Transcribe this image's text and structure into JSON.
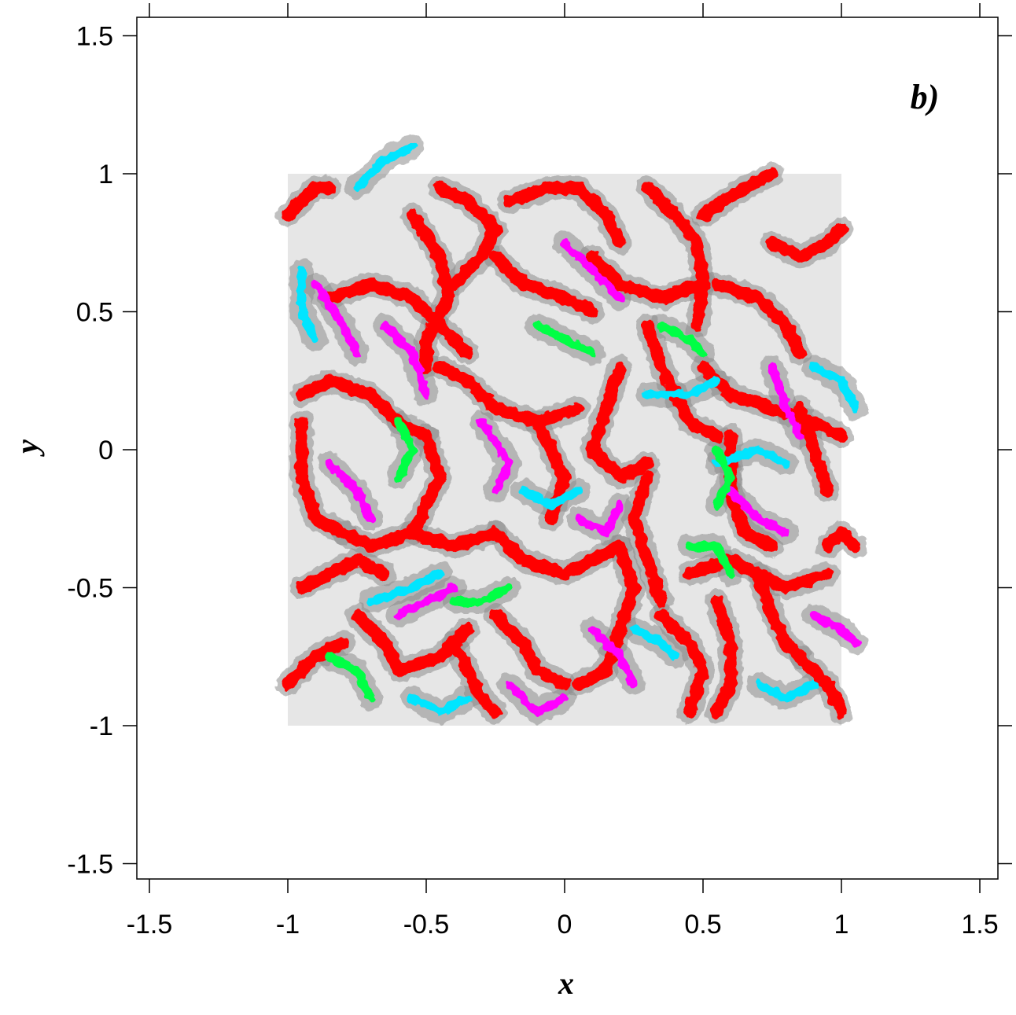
{
  "chart_data": {
    "type": "scatter",
    "panel_label": "b)",
    "xlabel": "x",
    "ylabel": "y",
    "xlim": [
      -1.55,
      1.55
    ],
    "ylim": [
      -1.55,
      1.55
    ],
    "x_ticks": [
      -1.5,
      -1,
      -0.5,
      0,
      0.5,
      1,
      1.5
    ],
    "y_ticks": [
      -1.5,
      -1,
      -0.5,
      0,
      0.5,
      1,
      1.5
    ],
    "x_tick_labels": [
      "-1.5",
      "-1",
      "-0.5",
      "0",
      "0.5",
      "1",
      "1.5"
    ],
    "y_tick_labels": [
      "-1.5",
      "-1",
      "-0.5",
      "0",
      "0.5",
      "1",
      "1.5"
    ],
    "grid": false,
    "domain_region": {
      "x": [
        -1,
        1
      ],
      "y": [
        -1,
        1
      ],
      "color": "#e6e6e6"
    },
    "colors": {
      "grain": "#e8e8e8",
      "grey_particles": "#8c8c8c",
      "red": "#ff0000",
      "magenta": "#ff00ff",
      "cyan": "#00e5ff",
      "green": "#00ff44"
    },
    "series": [
      {
        "color": "#ff0000",
        "curves": [
          [
            [
              -0.85,
              0.55
            ],
            [
              -0.7,
              0.6
            ],
            [
              -0.55,
              0.55
            ],
            [
              -0.45,
              0.45
            ],
            [
              -0.35,
              0.35
            ]
          ],
          [
            [
              -0.55,
              0.85
            ],
            [
              -0.45,
              0.7
            ],
            [
              -0.42,
              0.55
            ],
            [
              -0.5,
              0.4
            ],
            [
              -0.5,
              0.3
            ]
          ],
          [
            [
              -0.4,
              0.6
            ],
            [
              -0.3,
              0.7
            ],
            [
              -0.25,
              0.8
            ],
            [
              -0.35,
              0.9
            ],
            [
              -0.45,
              0.95
            ]
          ],
          [
            [
              -0.25,
              0.7
            ],
            [
              -0.15,
              0.6
            ],
            [
              0.0,
              0.55
            ],
            [
              0.1,
              0.5
            ]
          ],
          [
            [
              -0.2,
              0.9
            ],
            [
              -0.05,
              0.95
            ],
            [
              0.05,
              0.95
            ],
            [
              0.15,
              0.85
            ],
            [
              0.2,
              0.75
            ]
          ],
          [
            [
              0.1,
              0.7
            ],
            [
              0.2,
              0.6
            ],
            [
              0.35,
              0.55
            ],
            [
              0.5,
              0.6
            ]
          ],
          [
            [
              0.3,
              0.95
            ],
            [
              0.4,
              0.85
            ],
            [
              0.48,
              0.75
            ],
            [
              0.5,
              0.6
            ],
            [
              0.48,
              0.45
            ]
          ],
          [
            [
              0.5,
              0.85
            ],
            [
              0.65,
              0.95
            ],
            [
              0.75,
              1.0
            ]
          ],
          [
            [
              0.75,
              0.75
            ],
            [
              0.85,
              0.7
            ],
            [
              0.95,
              0.75
            ],
            [
              1.0,
              0.8
            ]
          ],
          [
            [
              0.55,
              0.6
            ],
            [
              0.7,
              0.55
            ],
            [
              0.8,
              0.45
            ],
            [
              0.85,
              0.35
            ]
          ],
          [
            [
              -0.95,
              0.2
            ],
            [
              -0.85,
              0.25
            ],
            [
              -0.7,
              0.2
            ],
            [
              -0.6,
              0.1
            ],
            [
              -0.5,
              0.05
            ]
          ],
          [
            [
              -0.95,
              0.1
            ],
            [
              -0.95,
              -0.1
            ],
            [
              -0.9,
              -0.25
            ],
            [
              -0.8,
              -0.3
            ]
          ],
          [
            [
              -0.5,
              0.05
            ],
            [
              -0.45,
              -0.1
            ],
            [
              -0.5,
              -0.2
            ],
            [
              -0.55,
              -0.3
            ]
          ],
          [
            [
              -0.45,
              0.3
            ],
            [
              -0.35,
              0.25
            ],
            [
              -0.25,
              0.15
            ],
            [
              -0.1,
              0.1
            ],
            [
              0.05,
              0.15
            ]
          ],
          [
            [
              -0.1,
              0.1
            ],
            [
              -0.05,
              0.0
            ],
            [
              0.0,
              -0.1
            ],
            [
              -0.05,
              -0.25
            ]
          ],
          [
            [
              0.2,
              0.3
            ],
            [
              0.15,
              0.15
            ],
            [
              0.1,
              0.0
            ],
            [
              0.2,
              -0.1
            ],
            [
              0.3,
              -0.05
            ]
          ],
          [
            [
              0.3,
              0.45
            ],
            [
              0.35,
              0.3
            ],
            [
              0.4,
              0.2
            ],
            [
              0.45,
              0.1
            ],
            [
              0.55,
              0.05
            ]
          ],
          [
            [
              0.5,
              0.3
            ],
            [
              0.6,
              0.2
            ],
            [
              0.75,
              0.15
            ],
            [
              0.9,
              0.1
            ],
            [
              1.0,
              0.05
            ]
          ],
          [
            [
              0.6,
              0.05
            ],
            [
              0.6,
              -0.15
            ],
            [
              0.65,
              -0.3
            ],
            [
              0.75,
              -0.35
            ]
          ],
          [
            [
              0.3,
              -0.1
            ],
            [
              0.25,
              -0.25
            ],
            [
              0.3,
              -0.4
            ],
            [
              0.35,
              -0.55
            ]
          ],
          [
            [
              -0.8,
              -0.3
            ],
            [
              -0.7,
              -0.35
            ],
            [
              -0.55,
              -0.3
            ],
            [
              -0.4,
              -0.35
            ],
            [
              -0.25,
              -0.3
            ]
          ],
          [
            [
              -0.25,
              -0.3
            ],
            [
              -0.15,
              -0.4
            ],
            [
              0.0,
              -0.45
            ],
            [
              0.1,
              -0.4
            ],
            [
              0.2,
              -0.35
            ]
          ],
          [
            [
              0.2,
              -0.35
            ],
            [
              0.25,
              -0.5
            ],
            [
              0.2,
              -0.65
            ],
            [
              0.15,
              -0.8
            ],
            [
              0.05,
              -0.85
            ]
          ],
          [
            [
              -0.95,
              -0.5
            ],
            [
              -0.85,
              -0.45
            ],
            [
              -0.75,
              -0.4
            ],
            [
              -0.65,
              -0.45
            ]
          ],
          [
            [
              -0.75,
              -0.6
            ],
            [
              -0.65,
              -0.7
            ],
            [
              -0.6,
              -0.8
            ],
            [
              -0.45,
              -0.75
            ],
            [
              -0.35,
              -0.65
            ]
          ],
          [
            [
              -0.4,
              -0.7
            ],
            [
              -0.35,
              -0.8
            ],
            [
              -0.3,
              -0.9
            ],
            [
              -0.25,
              -0.95
            ]
          ],
          [
            [
              -0.25,
              -0.6
            ],
            [
              -0.15,
              -0.7
            ],
            [
              -0.1,
              -0.8
            ],
            [
              0.0,
              -0.85
            ]
          ],
          [
            [
              0.35,
              -0.6
            ],
            [
              0.45,
              -0.7
            ],
            [
              0.5,
              -0.8
            ],
            [
              0.45,
              -0.95
            ]
          ],
          [
            [
              0.45,
              -0.45
            ],
            [
              0.6,
              -0.4
            ],
            [
              0.7,
              -0.45
            ],
            [
              0.8,
              -0.5
            ],
            [
              0.95,
              -0.45
            ]
          ],
          [
            [
              0.7,
              -0.45
            ],
            [
              0.75,
              -0.6
            ],
            [
              0.8,
              -0.7
            ],
            [
              0.85,
              -0.75
            ]
          ],
          [
            [
              0.85,
              -0.75
            ],
            [
              0.95,
              -0.85
            ],
            [
              1.0,
              -0.95
            ]
          ],
          [
            [
              0.95,
              -0.35
            ],
            [
              1.0,
              -0.3
            ],
            [
              1.05,
              -0.35
            ]
          ],
          [
            [
              0.85,
              0.15
            ],
            [
              0.9,
              0.0
            ],
            [
              0.95,
              -0.15
            ]
          ],
          [
            [
              -1.0,
              0.85
            ],
            [
              -0.9,
              0.95
            ],
            [
              -0.85,
              0.95
            ]
          ],
          [
            [
              -1.0,
              -0.85
            ],
            [
              -0.9,
              -0.75
            ],
            [
              -0.8,
              -0.7
            ]
          ],
          [
            [
              0.55,
              -0.55
            ],
            [
              0.6,
              -0.7
            ],
            [
              0.6,
              -0.85
            ],
            [
              0.55,
              -0.95
            ]
          ]
        ]
      },
      {
        "color": "#ff00ff",
        "curves": [
          [
            [
              -0.9,
              0.6
            ],
            [
              -0.8,
              0.45
            ],
            [
              -0.75,
              0.35
            ]
          ],
          [
            [
              -0.3,
              0.1
            ],
            [
              -0.2,
              -0.05
            ],
            [
              -0.25,
              -0.15
            ]
          ],
          [
            [
              0.05,
              -0.25
            ],
            [
              0.15,
              -0.3
            ],
            [
              0.2,
              -0.2
            ]
          ],
          [
            [
              -0.6,
              -0.6
            ],
            [
              -0.5,
              -0.55
            ],
            [
              -0.4,
              -0.5
            ]
          ],
          [
            [
              0.75,
              0.3
            ],
            [
              0.8,
              0.15
            ],
            [
              0.85,
              0.05
            ]
          ],
          [
            [
              0.1,
              -0.65
            ],
            [
              0.2,
              -0.75
            ],
            [
              0.25,
              -0.85
            ]
          ],
          [
            [
              -0.2,
              -0.85
            ],
            [
              -0.1,
              -0.95
            ],
            [
              0.0,
              -0.9
            ]
          ],
          [
            [
              0.6,
              -0.15
            ],
            [
              0.7,
              -0.25
            ],
            [
              0.8,
              -0.3
            ]
          ],
          [
            [
              -0.65,
              0.45
            ],
            [
              -0.55,
              0.35
            ],
            [
              -0.5,
              0.2
            ]
          ],
          [
            [
              0.0,
              0.75
            ],
            [
              0.1,
              0.65
            ],
            [
              0.2,
              0.55
            ]
          ],
          [
            [
              -0.85,
              -0.05
            ],
            [
              -0.75,
              -0.15
            ],
            [
              -0.7,
              -0.25
            ]
          ],
          [
            [
              0.9,
              -0.6
            ],
            [
              1.0,
              -0.65
            ],
            [
              1.05,
              -0.7
            ]
          ]
        ]
      },
      {
        "color": "#00e5ff",
        "curves": [
          [
            [
              -0.75,
              0.95
            ],
            [
              -0.65,
              1.05
            ],
            [
              -0.55,
              1.1
            ]
          ],
          [
            [
              -0.95,
              0.65
            ],
            [
              -0.95,
              0.5
            ],
            [
              -0.9,
              0.4
            ]
          ],
          [
            [
              0.3,
              0.2
            ],
            [
              0.45,
              0.2
            ],
            [
              0.55,
              0.25
            ]
          ],
          [
            [
              -0.15,
              -0.15
            ],
            [
              -0.05,
              -0.2
            ],
            [
              0.05,
              -0.15
            ]
          ],
          [
            [
              0.55,
              -0.05
            ],
            [
              0.7,
              0.0
            ],
            [
              0.8,
              -0.05
            ]
          ],
          [
            [
              -0.7,
              -0.55
            ],
            [
              -0.55,
              -0.5
            ],
            [
              -0.45,
              -0.45
            ]
          ],
          [
            [
              0.25,
              -0.65
            ],
            [
              0.35,
              -0.7
            ],
            [
              0.4,
              -0.75
            ]
          ],
          [
            [
              0.9,
              0.3
            ],
            [
              1.0,
              0.25
            ],
            [
              1.05,
              0.15
            ]
          ],
          [
            [
              -0.55,
              -0.9
            ],
            [
              -0.45,
              -0.95
            ],
            [
              -0.35,
              -0.9
            ]
          ],
          [
            [
              0.7,
              -0.85
            ],
            [
              0.8,
              -0.9
            ],
            [
              0.9,
              -0.85
            ]
          ]
        ]
      },
      {
        "color": "#00ff44",
        "curves": [
          [
            [
              -0.1,
              0.45
            ],
            [
              0.0,
              0.4
            ],
            [
              0.1,
              0.35
            ]
          ],
          [
            [
              0.55,
              0.0
            ],
            [
              0.6,
              -0.1
            ],
            [
              0.55,
              -0.2
            ]
          ],
          [
            [
              -0.6,
              0.1
            ],
            [
              -0.55,
              0.0
            ],
            [
              -0.6,
              -0.1
            ]
          ],
          [
            [
              -0.4,
              -0.55
            ],
            [
              -0.3,
              -0.55
            ],
            [
              -0.2,
              -0.5
            ]
          ],
          [
            [
              0.45,
              -0.35
            ],
            [
              0.55,
              -0.35
            ],
            [
              0.6,
              -0.45
            ]
          ],
          [
            [
              -0.85,
              -0.75
            ],
            [
              -0.75,
              -0.8
            ],
            [
              -0.7,
              -0.9
            ]
          ],
          [
            [
              0.35,
              0.45
            ],
            [
              0.45,
              0.4
            ],
            [
              0.5,
              0.35
            ]
          ]
        ]
      }
    ]
  }
}
